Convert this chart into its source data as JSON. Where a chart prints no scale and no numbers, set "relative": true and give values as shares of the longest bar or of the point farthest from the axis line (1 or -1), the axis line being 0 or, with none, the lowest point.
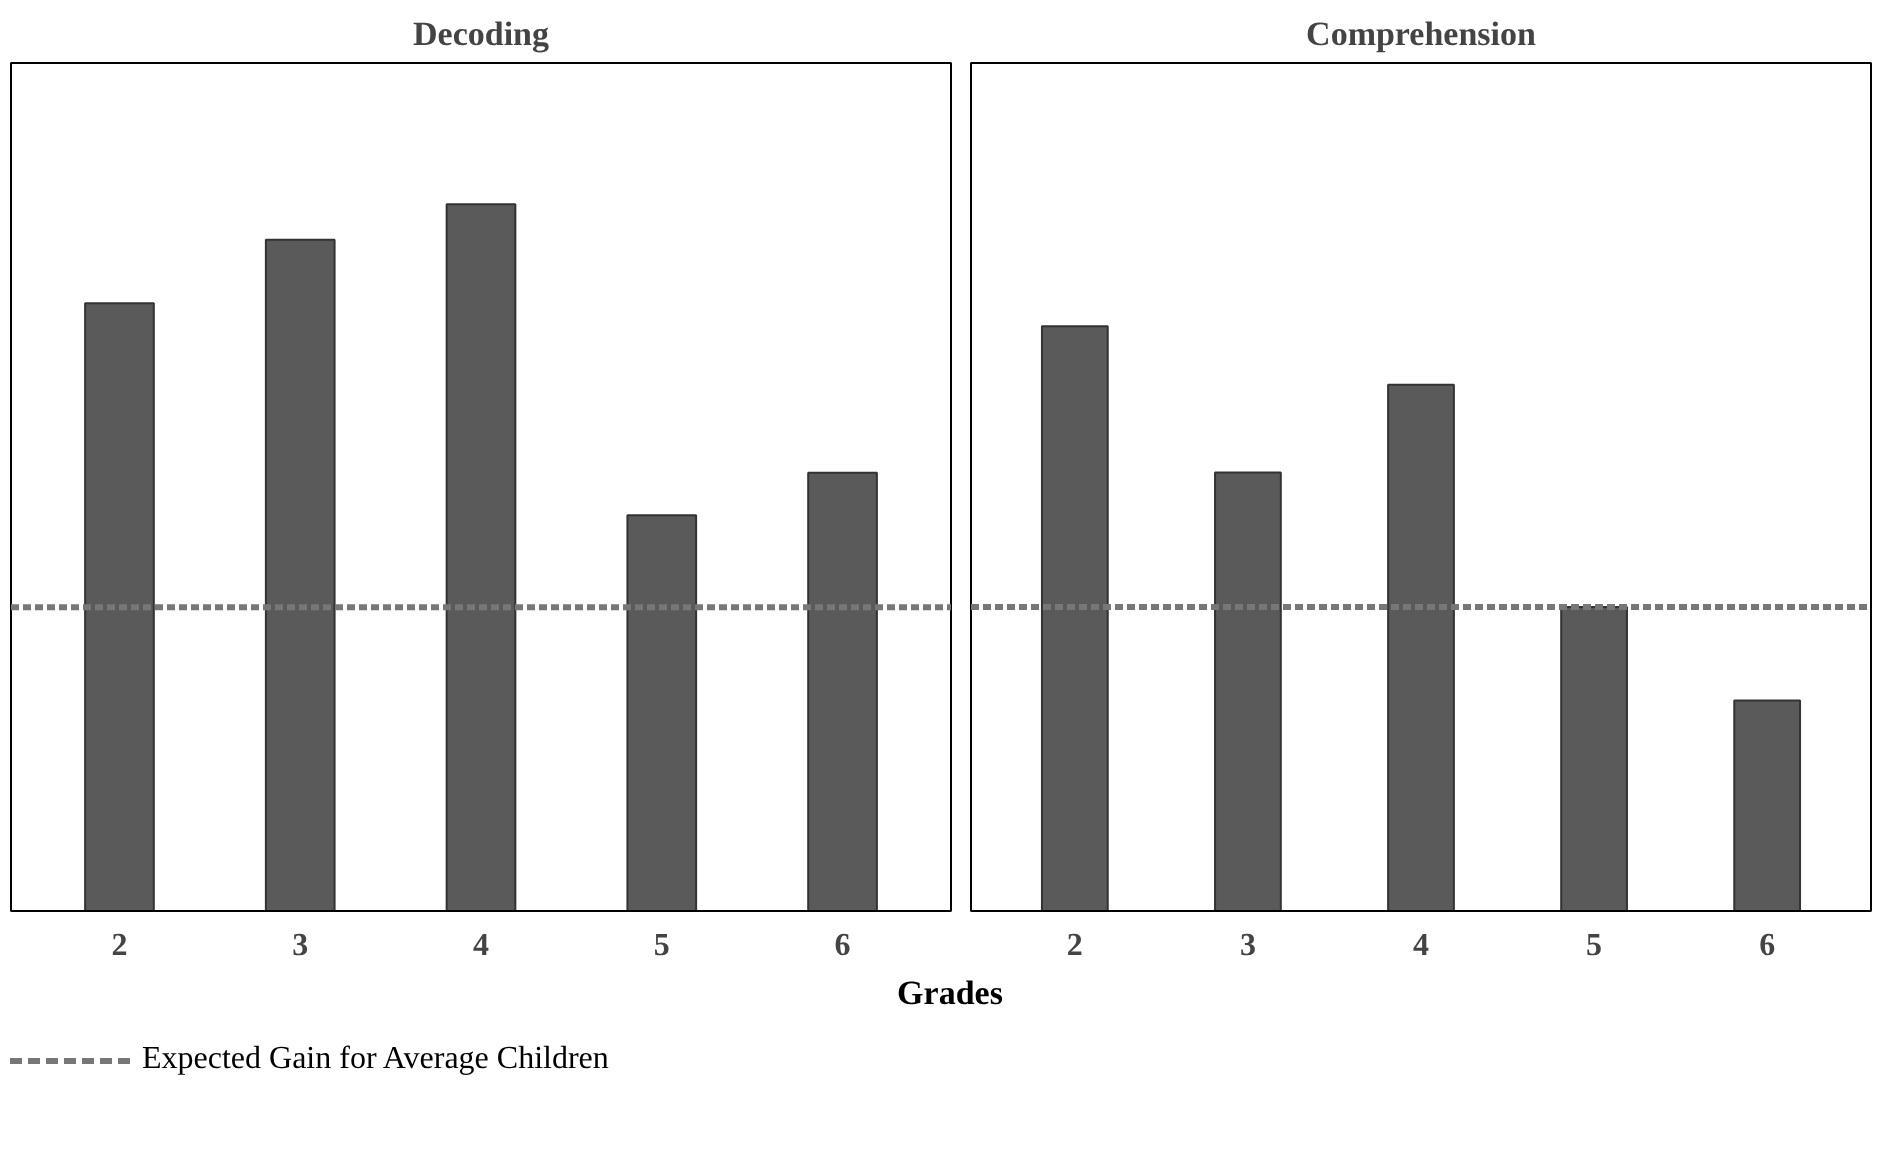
{
  "chart_data": [
    {
      "type": "bar",
      "title": "Decoding",
      "xlabel": "Grades",
      "categories": [
        "2",
        "3",
        "4",
        "5",
        "6"
      ],
      "relative": true,
      "color": "#5a5a5a",
      "values": [
        0.86,
        0.95,
        1.0,
        0.56,
        0.62
      ],
      "ref_lines": [
        {
          "axis": "y",
          "value": 0.43,
          "label": "Expected Gain for Average Children",
          "color": "#777777",
          "line_style": "dashed"
        }
      ],
      "grid": false,
      "legend": "bottom left"
    },
    {
      "type": "bar",
      "title": "Comprehension",
      "categories": [
        "2",
        "3",
        "4",
        "5",
        "6"
      ],
      "relative": true,
      "color": "#5a5a5a",
      "values": [
        1.0,
        0.75,
        0.9,
        0.52,
        0.36
      ],
      "ref_lines": [
        {
          "axis": "y",
          "value": 0.52,
          "color": "#777777",
          "line_style": "dashed"
        }
      ],
      "grid": false
    }
  ]
}
